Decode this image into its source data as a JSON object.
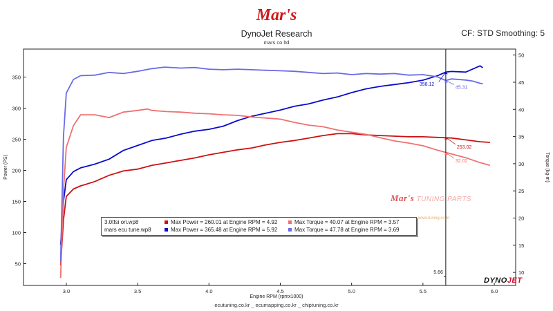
{
  "header": {
    "logo_text": "Mar's",
    "title": "DynoJet Research",
    "subtitle": "mars co ltd",
    "cf_label": "CF: STD Smoothing: 5"
  },
  "footer": {
    "text": "ecutuning.co.kr _ ecumapping.co.kr _ chiptuning.co.kr"
  },
  "watermark": {
    "brand": "Mar's",
    "text": "TUNING PARTS",
    "small": "www.tuning.co.kr"
  },
  "brand": {
    "dyno": "DYNO",
    "jet": "JET"
  },
  "colors": {
    "run1_power": "#cc1111",
    "run1_torque": "#f07070",
    "run2_power": "#0b0bc8",
    "run2_torque": "#6a6ae8",
    "background": "#ffffff"
  },
  "legend": {
    "rows": [
      {
        "run": "3.0tfsi ori.wp8",
        "power": "Max Power = 260.01 at Engine RPM = 4.92",
        "torque": "Max Torque = 40.07 at Engine RPM = 3.57",
        "power_color": "#cc1111",
        "torque_color": "#f07070"
      },
      {
        "run": "mars ecu tune.wp8",
        "power": "Max Power = 365.48 at Engine RPM = 5.92",
        "torque": "Max Torque = 47.78 at Engine RPM = 3.69",
        "power_color": "#0b0bc8",
        "torque_color": "#6a6ae8"
      }
    ]
  },
  "chart_data": {
    "type": "line",
    "xlabel": "Engine RPM (rpmx1000)",
    "ylabel": "Power (PS)",
    "y2label": "Torque (kg-m)",
    "xlim": [
      2.7,
      6.15
    ],
    "ylim": [
      15,
      395
    ],
    "y2lim": [
      7.6,
      51.1
    ],
    "xticks": [
      "3.0",
      "3.5",
      "4.0",
      "4.5",
      "5.0",
      "5.5",
      "6.0"
    ],
    "yticks": [
      "50",
      "100",
      "150",
      "200",
      "250",
      "300",
      "350"
    ],
    "y2ticks": [
      "10",
      "15",
      "20",
      "25",
      "30",
      "35",
      "40",
      "45",
      "50"
    ],
    "grid": false,
    "cursor": {
      "x": 5.66,
      "x_label": "5.66",
      "readouts": [
        {
          "label": "358.12",
          "value": 358.12,
          "axis": "power",
          "color": "#0b0bc8"
        },
        {
          "label": "45.31",
          "value": 45.31,
          "axis": "torque",
          "color": "#6a6ae8"
        },
        {
          "label": "253.02",
          "value": 253.02,
          "axis": "power",
          "color": "#cc1111"
        },
        {
          "label": "32.02",
          "value": 32.02,
          "axis": "torque",
          "color": "#f07070"
        }
      ]
    },
    "series": [
      {
        "name": "3.0tfsi ori.wp8 Power",
        "axis": "power",
        "color": "#cc1111",
        "x": [
          2.96,
          2.98,
          3.0,
          3.05,
          3.1,
          3.2,
          3.3,
          3.4,
          3.5,
          3.6,
          3.7,
          3.8,
          3.9,
          4.0,
          4.1,
          4.2,
          4.3,
          4.4,
          4.5,
          4.6,
          4.7,
          4.8,
          4.9,
          5.0,
          5.1,
          5.2,
          5.3,
          5.4,
          5.5,
          5.6,
          5.7,
          5.8,
          5.9,
          5.97
        ],
        "y": [
          47,
          120,
          158,
          170,
          175,
          182,
          192,
          199,
          202,
          208,
          212,
          216,
          220,
          225,
          229,
          233,
          236,
          241,
          245,
          248,
          252,
          256,
          259,
          259,
          257,
          256,
          255,
          254,
          254,
          253,
          252,
          249,
          246,
          245
        ]
      },
      {
        "name": "mars ecu tune.wp8 Power",
        "axis": "power",
        "color": "#0b0bc8",
        "x": [
          2.96,
          2.98,
          3.0,
          3.05,
          3.1,
          3.2,
          3.3,
          3.4,
          3.5,
          3.6,
          3.7,
          3.8,
          3.9,
          4.0,
          4.1,
          4.2,
          4.3,
          4.4,
          4.5,
          4.6,
          4.7,
          4.8,
          4.9,
          5.0,
          5.1,
          5.2,
          5.3,
          5.4,
          5.5,
          5.6,
          5.66,
          5.7,
          5.8,
          5.85,
          5.9,
          5.92
        ],
        "y": [
          80,
          150,
          185,
          198,
          204,
          210,
          218,
          232,
          240,
          248,
          252,
          258,
          263,
          266,
          271,
          280,
          287,
          292,
          297,
          303,
          307,
          313,
          318,
          325,
          331,
          335,
          338,
          341,
          345,
          352,
          358,
          359,
          358,
          363,
          368,
          365
        ]
      },
      {
        "name": "3.0tfsi ori.wp8 Torque",
        "axis": "torque",
        "color": "#f07070",
        "x": [
          2.96,
          2.98,
          3.0,
          3.05,
          3.1,
          3.2,
          3.3,
          3.4,
          3.5,
          3.57,
          3.6,
          3.7,
          3.8,
          3.9,
          4.0,
          4.1,
          4.2,
          4.3,
          4.4,
          4.5,
          4.6,
          4.7,
          4.8,
          4.9,
          5.0,
          5.1,
          5.2,
          5.3,
          5.4,
          5.5,
          5.6,
          5.7,
          5.8,
          5.9,
          5.97
        ],
        "y": [
          9.0,
          25,
          33,
          37,
          39,
          39,
          38.5,
          39.5,
          39.8,
          40.07,
          39.8,
          39.6,
          39.5,
          39.3,
          39.2,
          39.0,
          38.9,
          38.6,
          38.4,
          38.2,
          37.6,
          37.1,
          36.8,
          36.2,
          35.8,
          35.4,
          34.8,
          34.2,
          33.8,
          33.3,
          32.5,
          31.8,
          31.1,
          30.2,
          29.7
        ]
      },
      {
        "name": "mars ecu tune.wp8 Torque",
        "axis": "torque",
        "color": "#6a6ae8",
        "x": [
          2.96,
          2.98,
          3.0,
          3.05,
          3.1,
          3.2,
          3.3,
          3.4,
          3.5,
          3.6,
          3.69,
          3.8,
          3.9,
          4.0,
          4.1,
          4.2,
          4.3,
          4.4,
          4.5,
          4.6,
          4.7,
          4.8,
          4.9,
          5.0,
          5.1,
          5.2,
          5.3,
          5.4,
          5.5,
          5.6,
          5.66,
          5.7,
          5.8,
          5.85,
          5.9,
          5.92
        ],
        "y": [
          12,
          35,
          43,
          45.5,
          46.2,
          46.3,
          46.8,
          46.6,
          47.0,
          47.5,
          47.78,
          47.6,
          47.7,
          47.4,
          47.3,
          47.4,
          47.3,
          47.2,
          47.1,
          47.0,
          46.8,
          46.6,
          46.7,
          46.4,
          46.6,
          46.5,
          46.6,
          46.3,
          46.4,
          46.0,
          45.31,
          45.6,
          45.4,
          45.2,
          44.8,
          44.7
        ]
      }
    ]
  }
}
